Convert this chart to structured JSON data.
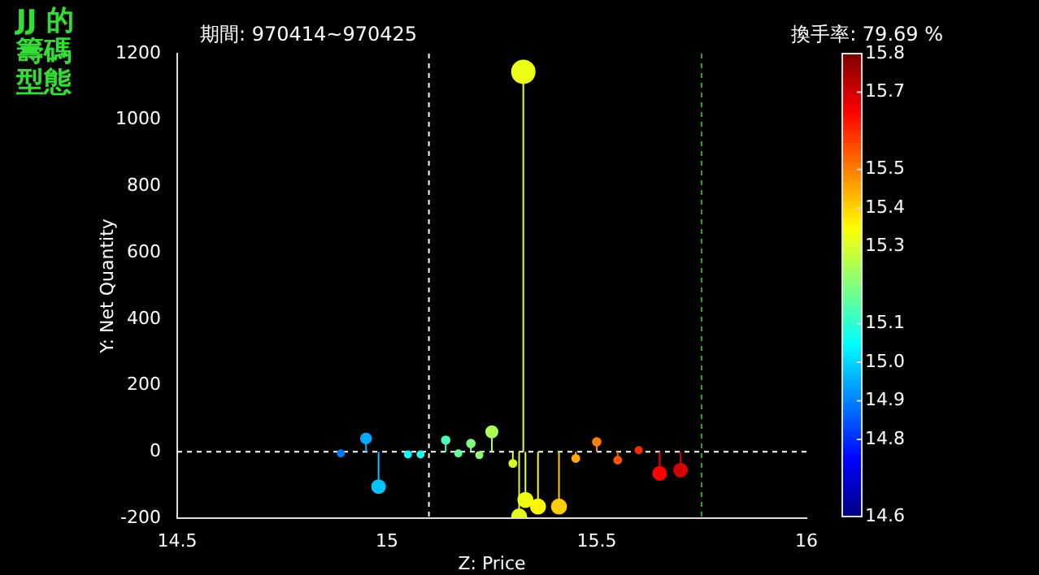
{
  "chart_data": {
    "type": "lollipop",
    "title": "JJ 的籌碼型態",
    "subtitle": "期間: 970414~970425",
    "annotations": [
      "換手率: 79.69 %"
    ],
    "xlabel": "Z: Price",
    "ylabel": "Y: Net Quantity",
    "clabel": null,
    "x": [
      14.89,
      14.95,
      14.98,
      15.05,
      15.08,
      15.14,
      15.17,
      15.2,
      15.22,
      15.25,
      15.3,
      15.315,
      15.325,
      15.33,
      15.36,
      15.41,
      15.45,
      15.5,
      15.55,
      15.6,
      15.65,
      15.7
    ],
    "values": [
      -5,
      40,
      -105,
      -8,
      -8,
      35,
      -5,
      25,
      -10,
      60,
      -35,
      -195,
      1145,
      -145,
      -165,
      -165,
      -20,
      30,
      -25,
      5,
      -65,
      -55
    ],
    "sizes": [
      0.08,
      0.2,
      0.33,
      0.08,
      0.08,
      0.12,
      0.08,
      0.12,
      0.08,
      0.25,
      0.1,
      0.4,
      1,
      0.4,
      0.4,
      0.4,
      0.1,
      0.12,
      0.1,
      0.08,
      0.33,
      0.33
    ],
    "cvalues": [
      14.89,
      14.95,
      14.98,
      15.05,
      15.08,
      15.14,
      15.17,
      15.2,
      15.22,
      15.25,
      15.3,
      15.315,
      15.325,
      15.33,
      15.36,
      15.41,
      15.45,
      15.5,
      15.55,
      15.6,
      15.65,
      15.7
    ],
    "xlim": [
      14.5,
      16
    ],
    "xticks": [
      14.5,
      15,
      15.5,
      16
    ],
    "ylim": [
      -200,
      1200
    ],
    "yticks": [
      -200,
      0,
      200,
      400,
      600,
      800,
      1000,
      1200
    ],
    "clim": [
      14.6,
      15.8
    ],
    "cticks": [
      14.6,
      14.8,
      14.9,
      {
        "value": 15.0,
        "label": "15.0"
      },
      15.1,
      15.3,
      15.4,
      15.5,
      15.7,
      15.8
    ],
    "ref_lines": [
      {
        "axis": "y",
        "value": 0,
        "color": "#ffffff",
        "line_style": "dashed"
      },
      {
        "axis": "x",
        "value": 15.1,
        "color": "#ffffff",
        "line_style": "dashed"
      },
      {
        "axis": "x",
        "value": 15.75,
        "color": "#22aa22",
        "line_style": "dashed"
      }
    ],
    "grid": false,
    "legend": false,
    "marker": "circle"
  }
}
